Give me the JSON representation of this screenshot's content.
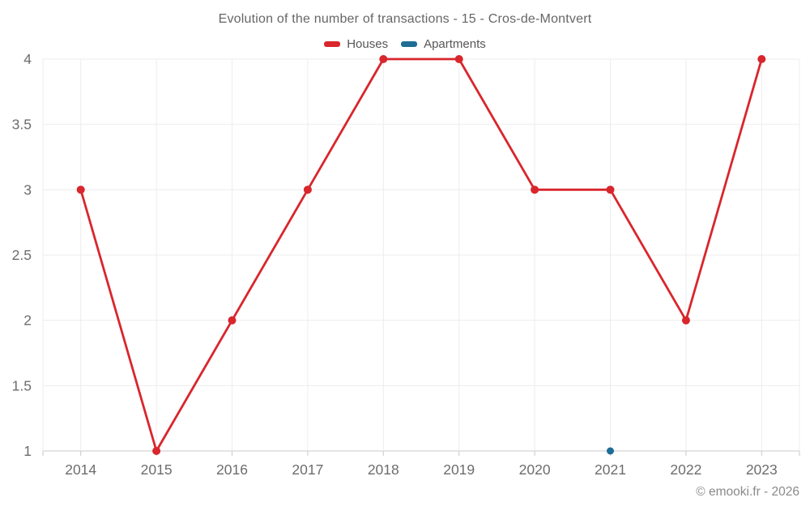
{
  "header": {
    "title": "Evolution of the number of transactions - 15 - Cros-de-Montvert"
  },
  "legend": {
    "items": [
      {
        "label": "Houses",
        "color": "#d8262c"
      },
      {
        "label": "Apartments",
        "color": "#1d6d96"
      }
    ]
  },
  "footer": {
    "watermark": "© emooki.fr - 2026"
  },
  "colors": {
    "houses": "#d8262c",
    "apartments": "#1d6d96",
    "gridline": "#ededed",
    "axis_line": "#c9c9c9",
    "axis_label": "#6d6d6d"
  },
  "chart_data": {
    "type": "line",
    "title": "Evolution of the number of transactions - 15 - Cros-de-Montvert",
    "xlabel": "",
    "ylabel": "",
    "categories": [
      "2014",
      "2015",
      "2016",
      "2017",
      "2018",
      "2019",
      "2020",
      "2021",
      "2022",
      "2023"
    ],
    "series": [
      {
        "name": "Houses",
        "color": "#d8262c",
        "values": [
          3,
          1,
          2,
          3,
          4,
          4,
          3,
          3,
          2,
          4
        ]
      },
      {
        "name": "Apartments",
        "color": "#1d6d96",
        "values": [
          null,
          null,
          null,
          null,
          null,
          null,
          null,
          1,
          null,
          null
        ]
      }
    ],
    "ylim": [
      1,
      4
    ],
    "yticks": [
      1,
      1.5,
      2,
      2.5,
      3,
      3.5,
      4
    ],
    "grid": true,
    "legend_position": "top"
  }
}
